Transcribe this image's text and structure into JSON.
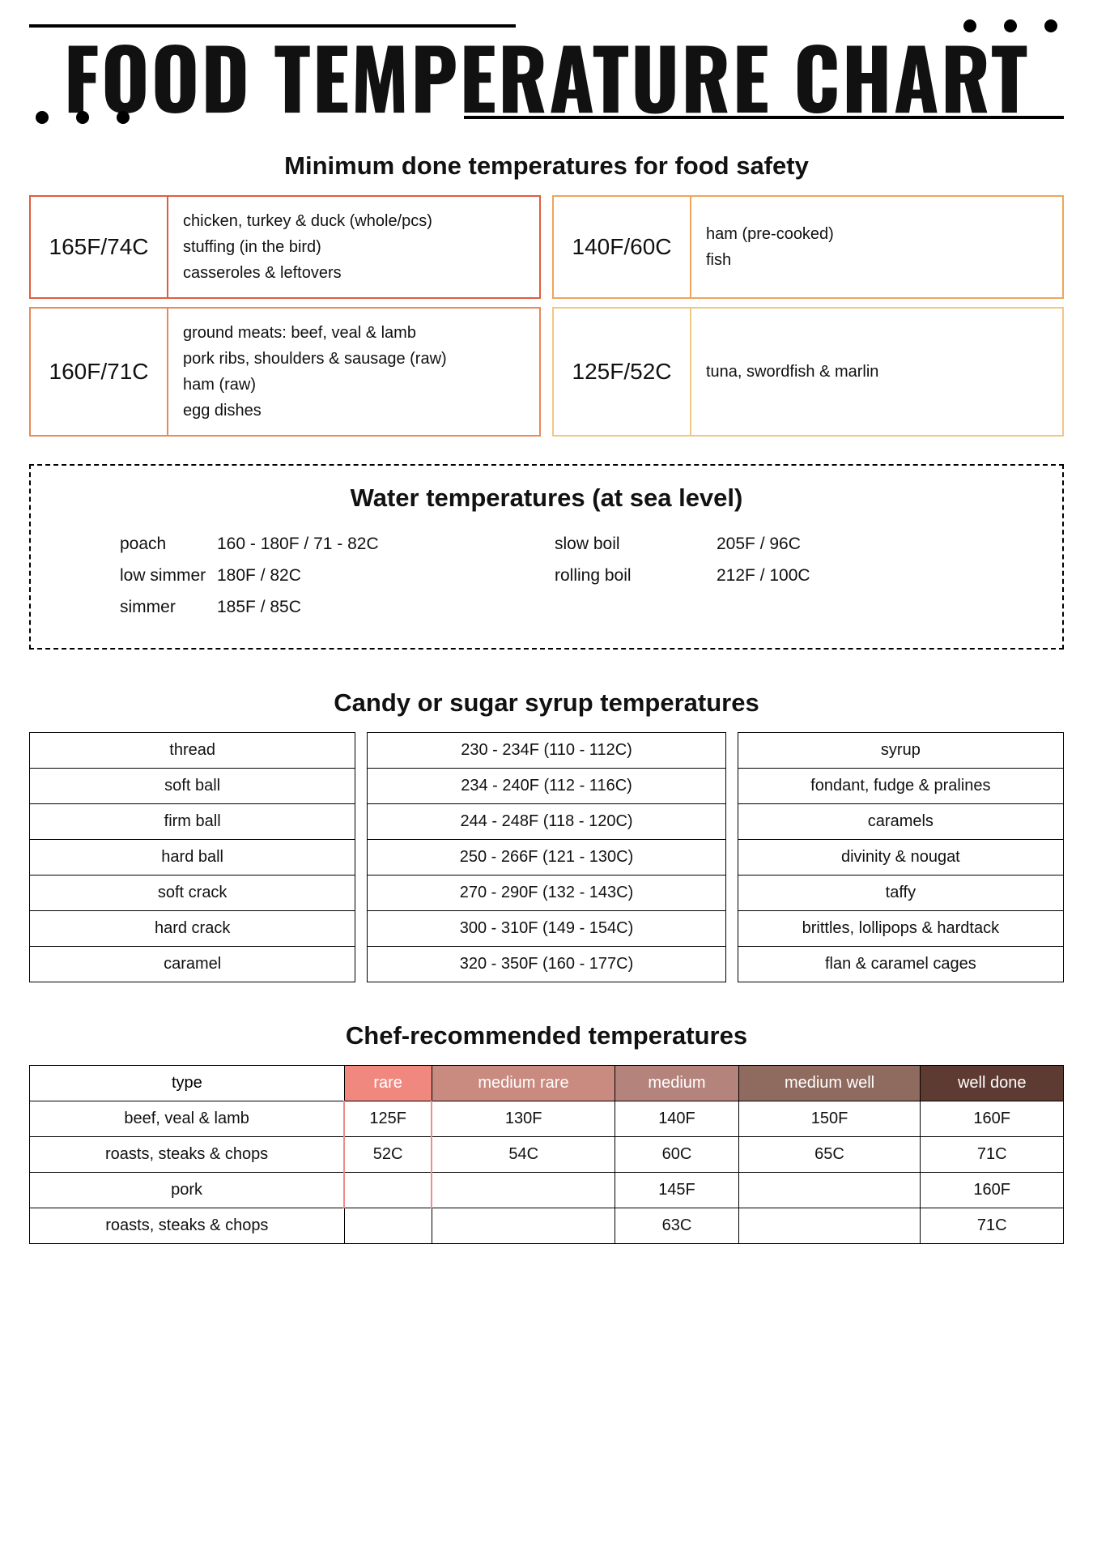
{
  "title": "FOOD TEMPERATURE CHART",
  "decor": {
    "dot_color": "#000000",
    "dot_size": 16,
    "dot_gap": 34
  },
  "minSection": {
    "title": "Minimum done temperatures for food safety",
    "cards": [
      {
        "temp": "165F/74C",
        "border": "#e05c3e",
        "lines": [
          "chicken, turkey & duck (whole/pcs)",
          "stuffing (in the bird)",
          "casseroles & leftovers"
        ]
      },
      {
        "temp": "140F/60C",
        "border": "#f0a45a",
        "lines": [
          "ham (pre-cooked)",
          "fish"
        ]
      },
      {
        "temp": "160F/71C",
        "border": "#e88a5a",
        "lines": [
          "ground meats: beef, veal & lamb",
          "pork ribs, shoulders & sausage (raw)",
          "ham (raw)",
          "egg dishes"
        ]
      },
      {
        "temp": "125F/52C",
        "border": "#f0c884",
        "lines": [
          "tuna, swordfish & marlin"
        ]
      }
    ]
  },
  "waterSection": {
    "title": "Water temperatures (at sea level)",
    "left": [
      {
        "label": "poach",
        "value": "160 - 180F / 71 - 82C"
      },
      {
        "label": "low simmer",
        "value": "180F / 82C"
      },
      {
        "label": "simmer",
        "value": "185F / 85C"
      }
    ],
    "right": [
      {
        "label": "slow boil",
        "value": "205F / 96C"
      },
      {
        "label": "rolling boil",
        "value": "212F / 100C"
      }
    ]
  },
  "candySection": {
    "title": "Candy or sugar syrup temperatures",
    "rows": [
      {
        "stage": "thread",
        "range": "230 - 234F (110 - 112C)",
        "use": "syrup"
      },
      {
        "stage": "soft ball",
        "range": "234 - 240F (112 - 116C)",
        "use": "fondant, fudge & pralines"
      },
      {
        "stage": "firm ball",
        "range": "244 - 248F (118 - 120C)",
        "use": "caramels"
      },
      {
        "stage": "hard ball",
        "range": "250 - 266F (121 - 130C)",
        "use": "divinity & nougat"
      },
      {
        "stage": "soft crack",
        "range": "270 - 290F (132 - 143C)",
        "use": "taffy"
      },
      {
        "stage": "hard crack",
        "range": "300 - 310F (149 - 154C)",
        "use": "brittles, lollipops & hardtack"
      },
      {
        "stage": "caramel",
        "range": "320 - 350F (160 - 177C)",
        "use": "flan & caramel cages"
      }
    ]
  },
  "chefSection": {
    "title": "Chef-recommended temperatures",
    "header": {
      "type": "type",
      "levels": [
        {
          "label": "rare",
          "bg": "#f1887f"
        },
        {
          "label": "medium rare",
          "bg": "#c98a7f"
        },
        {
          "label": "medium",
          "bg": "#b4847c"
        },
        {
          "label": "medium well",
          "bg": "#8f6a5f"
        },
        {
          "label": "well done",
          "bg": "#5e3b32"
        }
      ]
    },
    "rows": [
      {
        "type": "beef, veal & lamb",
        "vals": [
          "125F",
          "130F",
          "140F",
          "150F",
          "160F"
        ],
        "rare_accent": true
      },
      {
        "type": "roasts, steaks & chops",
        "vals": [
          "52C",
          "54C",
          "60C",
          "65C",
          "71C"
        ],
        "rare_accent": true
      },
      {
        "type": "pork",
        "vals": [
          "",
          "",
          "145F",
          "",
          "160F"
        ],
        "rare_accent": true
      },
      {
        "type": "roasts, steaks & chops",
        "vals": [
          "",
          "",
          "63C",
          "",
          "71C"
        ],
        "rare_accent": false
      }
    ]
  }
}
